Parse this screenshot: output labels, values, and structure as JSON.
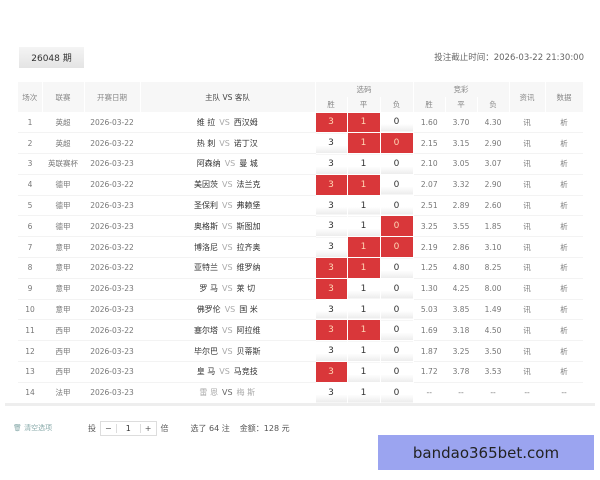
{
  "header": {
    "issue": "26048 期",
    "deadline": "投注截止时间：2026-03-22 21:30:00"
  },
  "columns": {
    "no": "场次",
    "league": "联赛",
    "date": "开赛日期",
    "match": "主队 VS 客队",
    "pick_group": "选码",
    "pick_w": "胜",
    "pick_d": "平",
    "pick_l": "负",
    "odds_group": "竞彩",
    "odds_w": "胜",
    "odds_d": "平",
    "odds_l": "负",
    "info": "资讯",
    "data": "数据"
  },
  "vs": "VS",
  "rows": [
    {
      "no": "1",
      "league": "英超",
      "date": "2026-03-22",
      "home": "维 拉",
      "away": "西汉姆",
      "picks": [
        "3",
        "1",
        "0"
      ],
      "sel": [
        true,
        true,
        false
      ],
      "odds": [
        "1.60",
        "3.70",
        "4.30"
      ],
      "info": "讯",
      "data": "析"
    },
    {
      "no": "2",
      "league": "英超",
      "date": "2026-03-22",
      "home": "热 刺",
      "away": "诺丁汉",
      "picks": [
        "3",
        "1",
        "0"
      ],
      "sel": [
        false,
        true,
        true
      ],
      "odds": [
        "2.15",
        "3.15",
        "2.90"
      ],
      "info": "讯",
      "data": "析"
    },
    {
      "no": "3",
      "league": "英联赛杯",
      "date": "2026-03-23",
      "home": "阿森纳",
      "away": "曼 城",
      "picks": [
        "3",
        "1",
        "0"
      ],
      "sel": [
        false,
        false,
        false
      ],
      "odds": [
        "2.10",
        "3.05",
        "3.07"
      ],
      "info": "讯",
      "data": "析"
    },
    {
      "no": "4",
      "league": "德甲",
      "date": "2026-03-22",
      "home": "美因茨",
      "away": "法兰克",
      "picks": [
        "3",
        "1",
        "0"
      ],
      "sel": [
        true,
        true,
        false
      ],
      "odds": [
        "2.07",
        "3.32",
        "2.90"
      ],
      "info": "讯",
      "data": "析"
    },
    {
      "no": "5",
      "league": "德甲",
      "date": "2026-03-23",
      "home": "圣保利",
      "away": "弗赖堡",
      "picks": [
        "3",
        "1",
        "0"
      ],
      "sel": [
        false,
        false,
        false
      ],
      "odds": [
        "2.51",
        "2.89",
        "2.60"
      ],
      "info": "讯",
      "data": "析"
    },
    {
      "no": "6",
      "league": "德甲",
      "date": "2026-03-23",
      "home": "奥格斯",
      "away": "斯图加",
      "picks": [
        "3",
        "1",
        "0"
      ],
      "sel": [
        false,
        false,
        true
      ],
      "odds": [
        "3.25",
        "3.55",
        "1.85"
      ],
      "info": "讯",
      "data": "析"
    },
    {
      "no": "7",
      "league": "意甲",
      "date": "2026-03-22",
      "home": "博洛尼",
      "away": "拉齐奥",
      "picks": [
        "3",
        "1",
        "0"
      ],
      "sel": [
        false,
        true,
        true
      ],
      "odds": [
        "2.19",
        "2.86",
        "3.10"
      ],
      "info": "讯",
      "data": "析"
    },
    {
      "no": "8",
      "league": "意甲",
      "date": "2026-03-22",
      "home": "亚特兰",
      "away": "维罗纳",
      "picks": [
        "3",
        "1",
        "0"
      ],
      "sel": [
        true,
        true,
        false
      ],
      "odds": [
        "1.25",
        "4.80",
        "8.25"
      ],
      "info": "讯",
      "data": "析"
    },
    {
      "no": "9",
      "league": "意甲",
      "date": "2026-03-23",
      "home": "罗 马",
      "away": "莱 切",
      "picks": [
        "3",
        "1",
        "0"
      ],
      "sel": [
        true,
        false,
        false
      ],
      "odds": [
        "1.30",
        "4.25",
        "8.00"
      ],
      "info": "讯",
      "data": "析"
    },
    {
      "no": "10",
      "league": "意甲",
      "date": "2026-03-23",
      "home": "佛罗伦",
      "away": "国 米",
      "picks": [
        "3",
        "1",
        "0"
      ],
      "sel": [
        false,
        false,
        false
      ],
      "odds": [
        "5.03",
        "3.85",
        "1.49"
      ],
      "info": "讯",
      "data": "析"
    },
    {
      "no": "11",
      "league": "西甲",
      "date": "2026-03-22",
      "home": "塞尔塔",
      "away": "阿拉维",
      "picks": [
        "3",
        "1",
        "0"
      ],
      "sel": [
        true,
        true,
        false
      ],
      "odds": [
        "1.69",
        "3.18",
        "4.50"
      ],
      "info": "讯",
      "data": "析"
    },
    {
      "no": "12",
      "league": "西甲",
      "date": "2026-03-23",
      "home": "毕尔巴",
      "away": "贝蒂斯",
      "picks": [
        "3",
        "1",
        "0"
      ],
      "sel": [
        false,
        false,
        false
      ],
      "odds": [
        "1.87",
        "3.25",
        "3.50"
      ],
      "info": "讯",
      "data": "析"
    },
    {
      "no": "13",
      "league": "西甲",
      "date": "2026-03-23",
      "home": "皇 马",
      "away": "马竞技",
      "picks": [
        "3",
        "1",
        "0"
      ],
      "sel": [
        true,
        false,
        false
      ],
      "odds": [
        "1.72",
        "3.78",
        "3.53"
      ],
      "info": "讯",
      "data": "析"
    },
    {
      "no": "14",
      "league": "法甲",
      "date": "2026-03-23",
      "home": "雷 恩",
      "away": "梅 斯",
      "picks": [
        "3",
        "1",
        "0"
      ],
      "sel": [
        false,
        false,
        false
      ],
      "odds": [
        "--",
        "--",
        "--"
      ],
      "info": "--",
      "data": "--"
    }
  ],
  "footer": {
    "clear": "清空选项",
    "bet_prefix": "投",
    "minus": "−",
    "multiplier": "1",
    "plus": "+",
    "bet_suffix": "倍",
    "selected": "选了 64 注",
    "amount": "金额：128 元"
  },
  "watermark": "bandao365bet.com",
  "colors": {
    "selected": "#d9373a"
  }
}
